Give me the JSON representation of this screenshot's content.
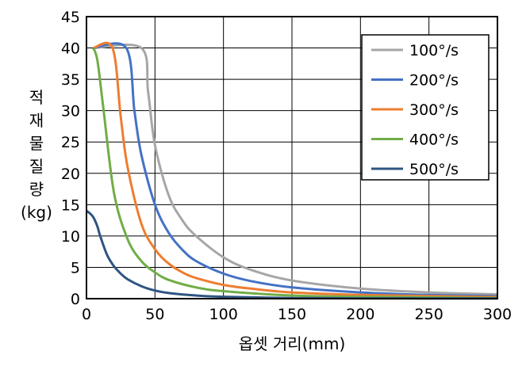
{
  "chart_data": {
    "type": "line",
    "title": "",
    "xlabel": "옵셋 거리(mm)",
    "ylabel": "적재물 질량 (kg)",
    "ylabel_chars": [
      "적",
      "재",
      "물",
      "질",
      "량",
      "(kg)"
    ],
    "xlim": [
      0,
      300
    ],
    "ylim": [
      0,
      45
    ],
    "x_ticks": [
      0,
      50,
      100,
      150,
      200,
      250,
      300
    ],
    "y_ticks": [
      0,
      5,
      10,
      15,
      20,
      25,
      30,
      35,
      40,
      45
    ],
    "grid": true,
    "legend_position": "top-right",
    "series": [
      {
        "name": "100°/s",
        "color": "#a6a6a6",
        "x": [
          5,
          40,
          45,
          50,
          60,
          70,
          80,
          100,
          120,
          150,
          200,
          250,
          300
        ],
        "y": [
          40,
          40,
          33,
          24.5,
          16.5,
          12.5,
          10,
          6.6,
          4.6,
          2.9,
          1.6,
          1.0,
          0.7
        ]
      },
      {
        "name": "200°/s",
        "color": "#4472c4",
        "x": [
          5,
          29,
          35,
          40,
          50,
          60,
          70,
          80,
          100,
          120,
          150,
          200,
          250,
          300
        ],
        "y": [
          40,
          40,
          30,
          23,
          15,
          10.5,
          7.8,
          6.0,
          4.0,
          2.8,
          1.8,
          1.0,
          0.6,
          0.4
        ]
      },
      {
        "name": "300°/s",
        "color": "#ed7d31",
        "x": [
          5,
          19,
          25,
          30,
          40,
          50,
          60,
          70,
          80,
          100,
          120,
          150,
          200,
          250,
          300
        ],
        "y": [
          40,
          40,
          29,
          21,
          12,
          7.9,
          5.6,
          4.2,
          3.3,
          2.2,
          1.6,
          1.0,
          0.6,
          0.4,
          0.25
        ]
      },
      {
        "name": "400°/s",
        "color": "#70ad47",
        "x": [
          5,
          8,
          12,
          20,
          30,
          40,
          50,
          60,
          80,
          100,
          150,
          200,
          300
        ],
        "y": [
          40,
          38,
          31,
          17,
          9.5,
          6.0,
          4.2,
          3.0,
          1.8,
          1.2,
          0.5,
          0.3,
          0.1
        ]
      },
      {
        "name": "500°/s",
        "color": "#2e5581",
        "x": [
          0,
          2,
          5,
          8,
          10,
          15,
          20,
          25,
          30,
          40,
          50,
          60,
          80,
          100,
          150,
          200,
          300
        ],
        "y": [
          14,
          13.7,
          13,
          11.5,
          10,
          7,
          5.2,
          4.0,
          3.1,
          2.0,
          1.3,
          0.9,
          0.5,
          0.3,
          0.1,
          0.05,
          0.02
        ]
      }
    ]
  }
}
